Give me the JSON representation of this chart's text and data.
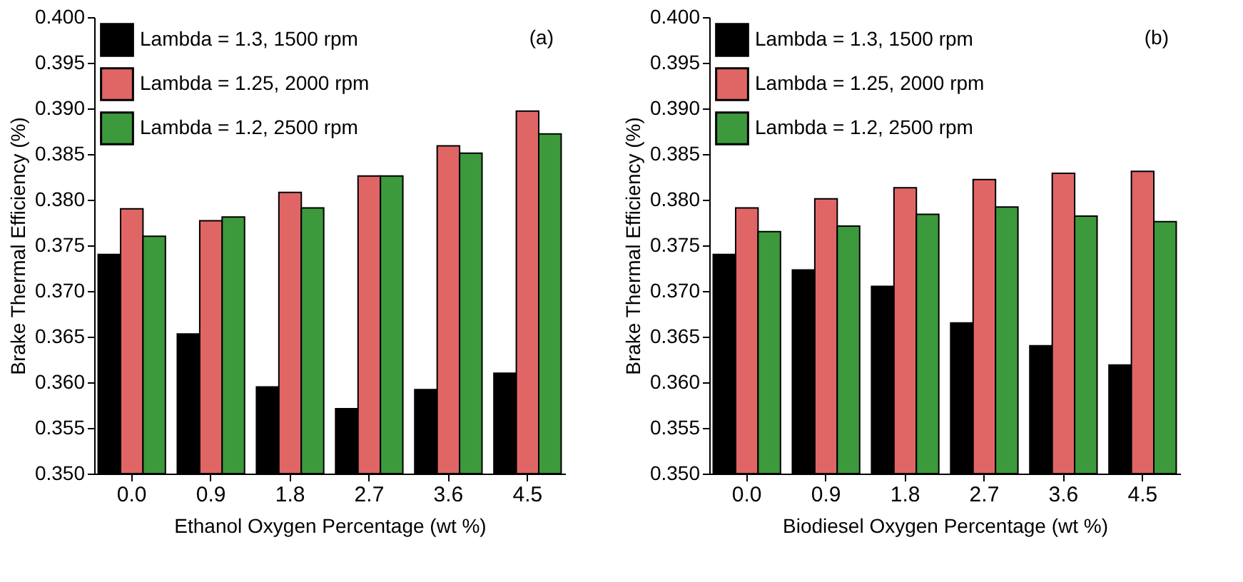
{
  "chart_data": [
    {
      "type": "bar",
      "xlabel": "Ethanol Oxygen Percentage (wt %)",
      "ylabel": "Brake Thermal Efficiency (%)",
      "annotations": [
        "(a)"
      ],
      "categories": [
        "0.0",
        "0.9",
        "1.8",
        "2.7",
        "3.6",
        "4.5"
      ],
      "series": [
        {
          "name": "Lambda = 1.3, 1500 rpm",
          "color": "#000000",
          "values": [
            0.374,
            0.3653,
            0.3595,
            0.3571,
            0.3592,
            0.361
          ]
        },
        {
          "name": "Lambda = 1.25, 2000 rpm",
          "color": "#e06666",
          "values": [
            0.379,
            0.3777,
            0.3808,
            0.3826,
            0.3859,
            0.3897
          ]
        },
        {
          "name": "Lambda = 1.2, 2500 rpm",
          "color": "#3c9a3c",
          "values": [
            0.376,
            0.3781,
            0.3791,
            0.3826,
            0.3851,
            0.3872
          ]
        }
      ],
      "ylim": [
        0.35,
        0.4
      ],
      "yticks": [
        {
          "value": 0.35,
          "label": "0.350"
        },
        {
          "value": 0.355,
          "label": "0.355"
        },
        {
          "value": 0.36,
          "label": "0.360"
        },
        {
          "value": 0.365,
          "label": "0.365"
        },
        {
          "value": 0.37,
          "label": "0.370"
        },
        {
          "value": 0.375,
          "label": "0.375"
        },
        {
          "value": 0.38,
          "label": "0.380"
        },
        {
          "value": 0.385,
          "label": "0.385"
        },
        {
          "value": 0.39,
          "label": "0.390"
        },
        {
          "value": 0.395,
          "label": "0.395"
        },
        {
          "value": 0.4,
          "label": "0.400"
        }
      ],
      "grid": false,
      "legend": "top left"
    },
    {
      "type": "bar",
      "xlabel": "Biodiesel Oxygen Percentage (wt %)",
      "ylabel": "Brake Thermal Efficiency (%)",
      "annotations": [
        "(b)"
      ],
      "categories": [
        "0.0",
        "0.9",
        "1.8",
        "2.7",
        "3.6",
        "4.5"
      ],
      "series": [
        {
          "name": "Lambda = 1.3, 1500 rpm",
          "color": "#000000",
          "values": [
            0.374,
            0.3723,
            0.3705,
            0.3665,
            0.364,
            0.3619
          ]
        },
        {
          "name": "Lambda = 1.25, 2000 rpm",
          "color": "#e06666",
          "values": [
            0.3791,
            0.3801,
            0.3813,
            0.3822,
            0.3829,
            0.3831
          ]
        },
        {
          "name": "Lambda = 1.2, 2500 rpm",
          "color": "#3c9a3c",
          "values": [
            0.3765,
            0.3771,
            0.3784,
            0.3792,
            0.3782,
            0.3776
          ]
        }
      ],
      "ylim": [
        0.35,
        0.4
      ],
      "yticks": [
        {
          "value": 0.35,
          "label": "0.350"
        },
        {
          "value": 0.355,
          "label": "0.355"
        },
        {
          "value": 0.36,
          "label": "0.360"
        },
        {
          "value": 0.365,
          "label": "0.365"
        },
        {
          "value": 0.37,
          "label": "0.370"
        },
        {
          "value": 0.375,
          "label": "0.375"
        },
        {
          "value": 0.38,
          "label": "0.380"
        },
        {
          "value": 0.385,
          "label": "0.385"
        },
        {
          "value": 0.39,
          "label": "0.390"
        },
        {
          "value": 0.395,
          "label": "0.395"
        },
        {
          "value": 0.4,
          "label": "0.400"
        }
      ],
      "grid": false,
      "legend": "top left"
    }
  ]
}
